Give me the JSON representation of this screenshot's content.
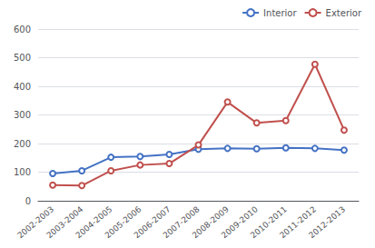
{
  "chart_data": {
    "type": "line",
    "categories": [
      "2002-2003",
      "2003-2004",
      "2004-2005",
      "2005-2006",
      "2006-2007",
      "2007-2008",
      "2008-2009",
      "2009-2010",
      "2010-2011",
      "2011-2012",
      "2012-2013"
    ],
    "series": [
      {
        "name": "Interior",
        "color": "#4472C4",
        "values": [
          95,
          105,
          152,
          155,
          162,
          180,
          183,
          182,
          185,
          183,
          177
        ]
      },
      {
        "name": "Exterior",
        "color": "#C0504D",
        "values": [
          55,
          53,
          105,
          125,
          130,
          195,
          345,
          272,
          280,
          477,
          247
        ]
      }
    ],
    "ylim": [
      0,
      600
    ],
    "yticks": [
      0,
      100,
      200,
      300,
      400,
      500,
      600
    ],
    "grid": true,
    "legend": "upper right"
  }
}
